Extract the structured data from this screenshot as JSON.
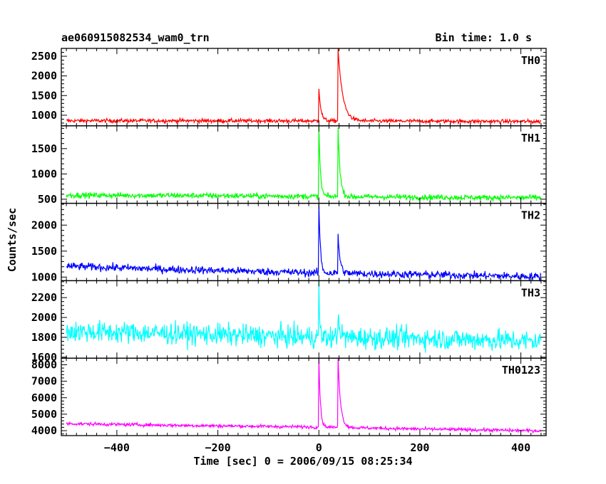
{
  "header": {
    "title": "ae060915082534_wam0_trn",
    "bin_time": "Bin time: 1.0 s"
  },
  "chart_data": {
    "type": "line",
    "ylabel": "Counts/sec",
    "xlabel": "Time [sec] 0 = 2006/09/15 08:25:34",
    "xlim": [
      -510,
      450
    ],
    "x_ticks": [
      -400,
      -200,
      0,
      200,
      400
    ],
    "x_tick_labels": [
      "−400",
      "−200",
      "0",
      "200",
      "400"
    ],
    "panels": [
      {
        "name": "TH0",
        "color": "#ff0000",
        "ylim": [
          730,
          2700
        ],
        "y_ticks": [
          1000,
          1500,
          2000,
          2500
        ],
        "baseline": [
          [
            -500,
            860
          ],
          [
            -300,
            860
          ],
          [
            0,
            855
          ],
          [
            200,
            850
          ],
          [
            440,
            840
          ]
        ],
        "noise": 50,
        "peaks": [
          {
            "t": 0,
            "value": 1710,
            "decay": 4
          },
          {
            "t": 38,
            "value": 2700,
            "decay": 9
          }
        ]
      },
      {
        "name": "TH1",
        "color": "#00ff00",
        "ylim": [
          420,
          1950
        ],
        "y_ticks": [
          500,
          1000,
          1500
        ],
        "baseline": [
          [
            -500,
            580
          ],
          [
            -200,
            570
          ],
          [
            0,
            555
          ],
          [
            200,
            540
          ],
          [
            440,
            530
          ]
        ],
        "noise": 55,
        "peaks": [
          {
            "t": 0,
            "value": 1950,
            "decay": 3
          },
          {
            "t": 38,
            "value": 1950,
            "decay": 4
          }
        ]
      },
      {
        "name": "TH2",
        "color": "#0000ff",
        "ylim": [
          930,
          2420
        ],
        "y_ticks": [
          1000,
          1500,
          2000
        ],
        "baseline": [
          [
            -500,
            1210
          ],
          [
            -300,
            1150
          ],
          [
            0,
            1080
          ],
          [
            200,
            1050
          ],
          [
            440,
            1010
          ]
        ],
        "noise": 75,
        "peaks": [
          {
            "t": 0,
            "value": 2420,
            "decay": 3
          },
          {
            "t": 38,
            "value": 1820,
            "decay": 4
          }
        ]
      },
      {
        "name": "TH3",
        "color": "#00ffff",
        "ylim": [
          1590,
          2370
        ],
        "y_ticks": [
          1600,
          1800,
          2000,
          2200
        ],
        "baseline": [
          [
            -500,
            1860
          ],
          [
            -300,
            1840
          ],
          [
            0,
            1800
          ],
          [
            200,
            1790
          ],
          [
            440,
            1760
          ]
        ],
        "noise": 110,
        "peaks": [
          {
            "t": 0,
            "value": 2370,
            "decay": 1.5
          },
          {
            "t": 38,
            "value": 2080,
            "decay": 3
          }
        ]
      },
      {
        "name": "TH0123",
        "color": "#ff00ff",
        "ylim": [
          3700,
          8400
        ],
        "y_ticks": [
          4000,
          5000,
          6000,
          7000,
          8000
        ],
        "baseline": [
          [
            -500,
            4430
          ],
          [
            -300,
            4330
          ],
          [
            0,
            4220
          ],
          [
            200,
            4100
          ],
          [
            440,
            3990
          ]
        ],
        "noise": 100,
        "peaks": [
          {
            "t": 0,
            "value": 8400,
            "decay": 3
          },
          {
            "t": 38,
            "value": 8400,
            "decay": 5
          }
        ]
      }
    ]
  }
}
